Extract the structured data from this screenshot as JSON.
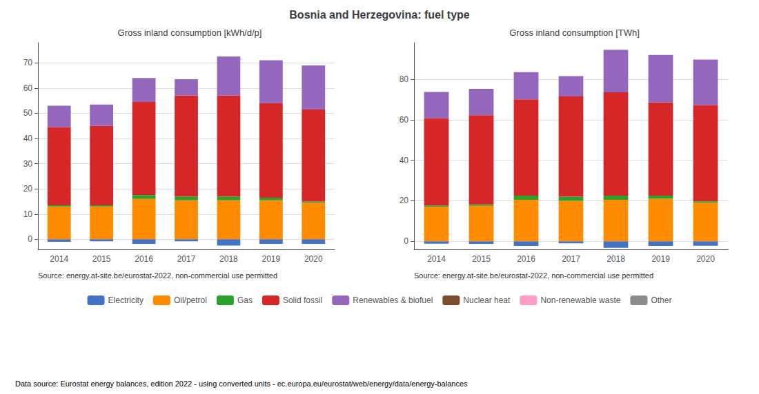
{
  "title": "Bosnia and Herzegovina: fuel type",
  "annotations": [
    "Data source: Eurostat energy balances, edition 2022 - using converted units - ec.europa.eu/eurostat/web/energy/data/energy-balances"
  ],
  "legend": "bottom",
  "chart_data": [
    {
      "type": "bar",
      "title": "Gross inland consumption [kWh/d/p]",
      "categories": [
        "2014",
        "2015",
        "2016",
        "2017",
        "2018",
        "2019",
        "2020"
      ],
      "stacked": true,
      "grid": true,
      "ylim": [
        -4,
        78
      ],
      "yticks": [
        0,
        10,
        20,
        30,
        40,
        50,
        60,
        70
      ],
      "annotations": [
        "Source: energy.at-site.be/eurostat-2022, non-commercial use permitted"
      ],
      "series": [
        {
          "name": "Electricity",
          "color": "#4472c4",
          "values": [
            -1.0,
            -0.8,
            -1.8,
            -0.8,
            -2.5,
            -1.8,
            -1.8
          ]
        },
        {
          "name": "Oil/petrol",
          "color": "#ff8c00",
          "values": [
            13.0,
            13.0,
            16.0,
            15.5,
            15.5,
            15.5,
            14.5
          ]
        },
        {
          "name": "Gas",
          "color": "#2ca02c",
          "values": [
            0.5,
            0.5,
            1.5,
            1.5,
            1.5,
            1.0,
            0.5
          ]
        },
        {
          "name": "Solid fossil",
          "color": "#d62728",
          "values": [
            31.0,
            31.5,
            37.0,
            40.0,
            40.0,
            37.5,
            36.5
          ]
        },
        {
          "name": "Renewables & biofuel",
          "color": "#9467bd",
          "values": [
            8.5,
            8.5,
            9.5,
            6.5,
            15.5,
            17.0,
            17.5
          ]
        },
        {
          "name": "Nuclear heat",
          "color": "#7b4f2e",
          "values": [
            0.0,
            0.0,
            0.0,
            0.0,
            0.0,
            0.0,
            0.0
          ]
        },
        {
          "name": "Non-renewable waste",
          "color": "#ff9dc6",
          "values": [
            0.0,
            0.0,
            0.0,
            0.0,
            0.0,
            0.0,
            0.0
          ]
        },
        {
          "name": "Other",
          "color": "#8c8c8c",
          "values": [
            0.0,
            0.0,
            0.0,
            0.0,
            0.0,
            0.0,
            0.0
          ]
        }
      ]
    },
    {
      "type": "bar",
      "title": "Gross inland consumption [TWh]",
      "categories": [
        "2014",
        "2015",
        "2016",
        "2017",
        "2018",
        "2019",
        "2020"
      ],
      "stacked": true,
      "grid": true,
      "ylim": [
        -4,
        98
      ],
      "yticks": [
        0,
        20,
        40,
        60,
        80
      ],
      "annotations": [
        "Source: energy.at-site.be/eurostat-2022, non-commercial use permitted"
      ],
      "series": [
        {
          "name": "Electricity",
          "color": "#4472c4",
          "values": [
            -1.2,
            -1.3,
            -2.3,
            -1.0,
            -3.2,
            -2.3,
            -2.2
          ]
        },
        {
          "name": "Oil/petrol",
          "color": "#ff8c00",
          "values": [
            17.0,
            17.5,
            20.5,
            20.0,
            20.5,
            21.0,
            19.0
          ]
        },
        {
          "name": "Gas",
          "color": "#2ca02c",
          "values": [
            0.7,
            0.7,
            2.0,
            2.0,
            2.0,
            1.5,
            0.7
          ]
        },
        {
          "name": "Solid fossil",
          "color": "#d62728",
          "values": [
            43.0,
            44.0,
            47.5,
            49.5,
            51.0,
            46.0,
            47.5
          ]
        },
        {
          "name": "Renewables & biofuel",
          "color": "#9467bd",
          "values": [
            13.0,
            13.0,
            13.5,
            10.0,
            21.0,
            23.5,
            22.5
          ]
        },
        {
          "name": "Nuclear heat",
          "color": "#7b4f2e",
          "values": [
            0.0,
            0.0,
            0.0,
            0.0,
            0.0,
            0.0,
            0.0
          ]
        },
        {
          "name": "Non-renewable waste",
          "color": "#ff9dc6",
          "values": [
            0.0,
            0.0,
            0.0,
            0.0,
            0.0,
            0.0,
            0.0
          ]
        },
        {
          "name": "Other",
          "color": "#8c8c8c",
          "values": [
            0.0,
            0.0,
            0.0,
            0.0,
            0.0,
            0.0,
            0.0
          ]
        }
      ]
    }
  ]
}
